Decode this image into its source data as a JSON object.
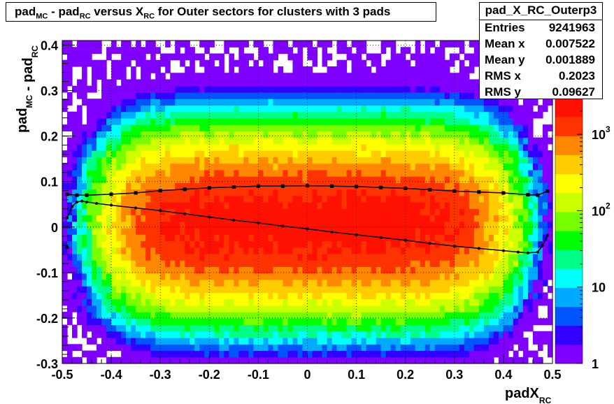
{
  "title": {
    "parts": [
      {
        "t": "pad",
        "sub": "MC"
      },
      {
        "t": " - pad",
        "sub": "RC"
      },
      {
        "t": " versus X",
        "sub": "RC"
      },
      {
        "t": " for Outer sectors for clusters with 3 pads",
        "sub": ""
      }
    ]
  },
  "stats": {
    "name": "pad_X_RC_Outerp3",
    "rows": [
      {
        "label": "Entries",
        "value": "9241963"
      },
      {
        "label": "Mean x",
        "value": "0.007522"
      },
      {
        "label": "Mean y",
        "value": "0.001889"
      },
      {
        "label": "RMS x",
        "value": "0.2023"
      },
      {
        "label": "RMS y",
        "value": "0.09627"
      }
    ]
  },
  "colors": {
    "palette": [
      "#7f00ff",
      "#3300ff",
      "#0055ff",
      "#00aaff",
      "#00ffff",
      "#00ff88",
      "#00ff00",
      "#77ff00",
      "#ccff00",
      "#ffff00",
      "#ffcc00",
      "#ff8800",
      "#ff3300",
      "#ff1100"
    ]
  },
  "chart_data": {
    "type": "heatmap",
    "title": "pad_MC - pad_RC versus X_RC for Outer sectors for clusters with 3 pads",
    "xlabel": {
      "main": "padX",
      "sub": "RC"
    },
    "ylabel": {
      "parts": [
        {
          "t": "pad",
          "sub": "MC"
        },
        {
          "t": " - pad",
          "sub": "RC"
        }
      ]
    },
    "xlim": [
      -0.5,
      0.5
    ],
    "ylim": [
      -0.3,
      0.41
    ],
    "x_ticks": [
      "-0.5",
      "-0.4",
      "-0.3",
      "-0.2",
      "-0.1",
      "0",
      "0.1",
      "0.2",
      "0.3",
      "0.4",
      "0.5"
    ],
    "y_ticks": [
      "-0.3",
      "-0.2",
      "-0.1",
      "0",
      "0.1",
      "0.2",
      "0.3",
      "0.4"
    ],
    "z_scale": "log",
    "z_ticks": [
      {
        "v": 1,
        "base": "1",
        "exp": ""
      },
      {
        "v": 10,
        "base": "10",
        "exp": ""
      },
      {
        "v": 100,
        "base": "10",
        "exp": "2"
      },
      {
        "v": 1000,
        "base": "10",
        "exp": "3"
      }
    ],
    "zlim": [
      1,
      3000
    ],
    "grid": true,
    "series": [
      {
        "role": "mean-profile",
        "x": [
          -0.49,
          -0.48,
          -0.47,
          -0.46,
          -0.45,
          -0.43,
          -0.4,
          -0.35,
          -0.3,
          -0.25,
          -0.2,
          -0.15,
          -0.1,
          -0.05,
          0.0,
          0.05,
          0.1,
          0.15,
          0.2,
          0.25,
          0.3,
          0.35,
          0.4,
          0.43,
          0.45,
          0.47,
          0.48,
          0.49
        ],
        "y": [
          0.02,
          0.045,
          0.055,
          0.057,
          0.055,
          0.052,
          0.048,
          0.042,
          0.036,
          0.029,
          0.022,
          0.015,
          0.009,
          0.002,
          -0.004,
          -0.011,
          -0.017,
          -0.023,
          -0.029,
          -0.036,
          -0.042,
          -0.047,
          -0.052,
          -0.055,
          -0.057,
          -0.055,
          -0.04,
          -0.018
        ]
      },
      {
        "role": "rms-profile",
        "x": [
          -0.49,
          -0.47,
          -0.45,
          -0.4,
          -0.35,
          -0.3,
          -0.25,
          -0.2,
          -0.15,
          -0.1,
          -0.05,
          0.0,
          0.05,
          0.1,
          0.15,
          0.2,
          0.25,
          0.3,
          0.35,
          0.4,
          0.45,
          0.47,
          0.49
        ],
        "y": [
          0.072,
          0.07,
          0.07,
          0.072,
          0.075,
          0.08,
          0.083,
          0.086,
          0.088,
          0.09,
          0.09,
          0.091,
          0.09,
          0.089,
          0.087,
          0.085,
          0.082,
          0.079,
          0.077,
          0.075,
          0.071,
          0.07,
          0.079
        ]
      }
    ],
    "extra_points": [
      {
        "x": -0.49,
        "y": -0.045
      }
    ]
  }
}
